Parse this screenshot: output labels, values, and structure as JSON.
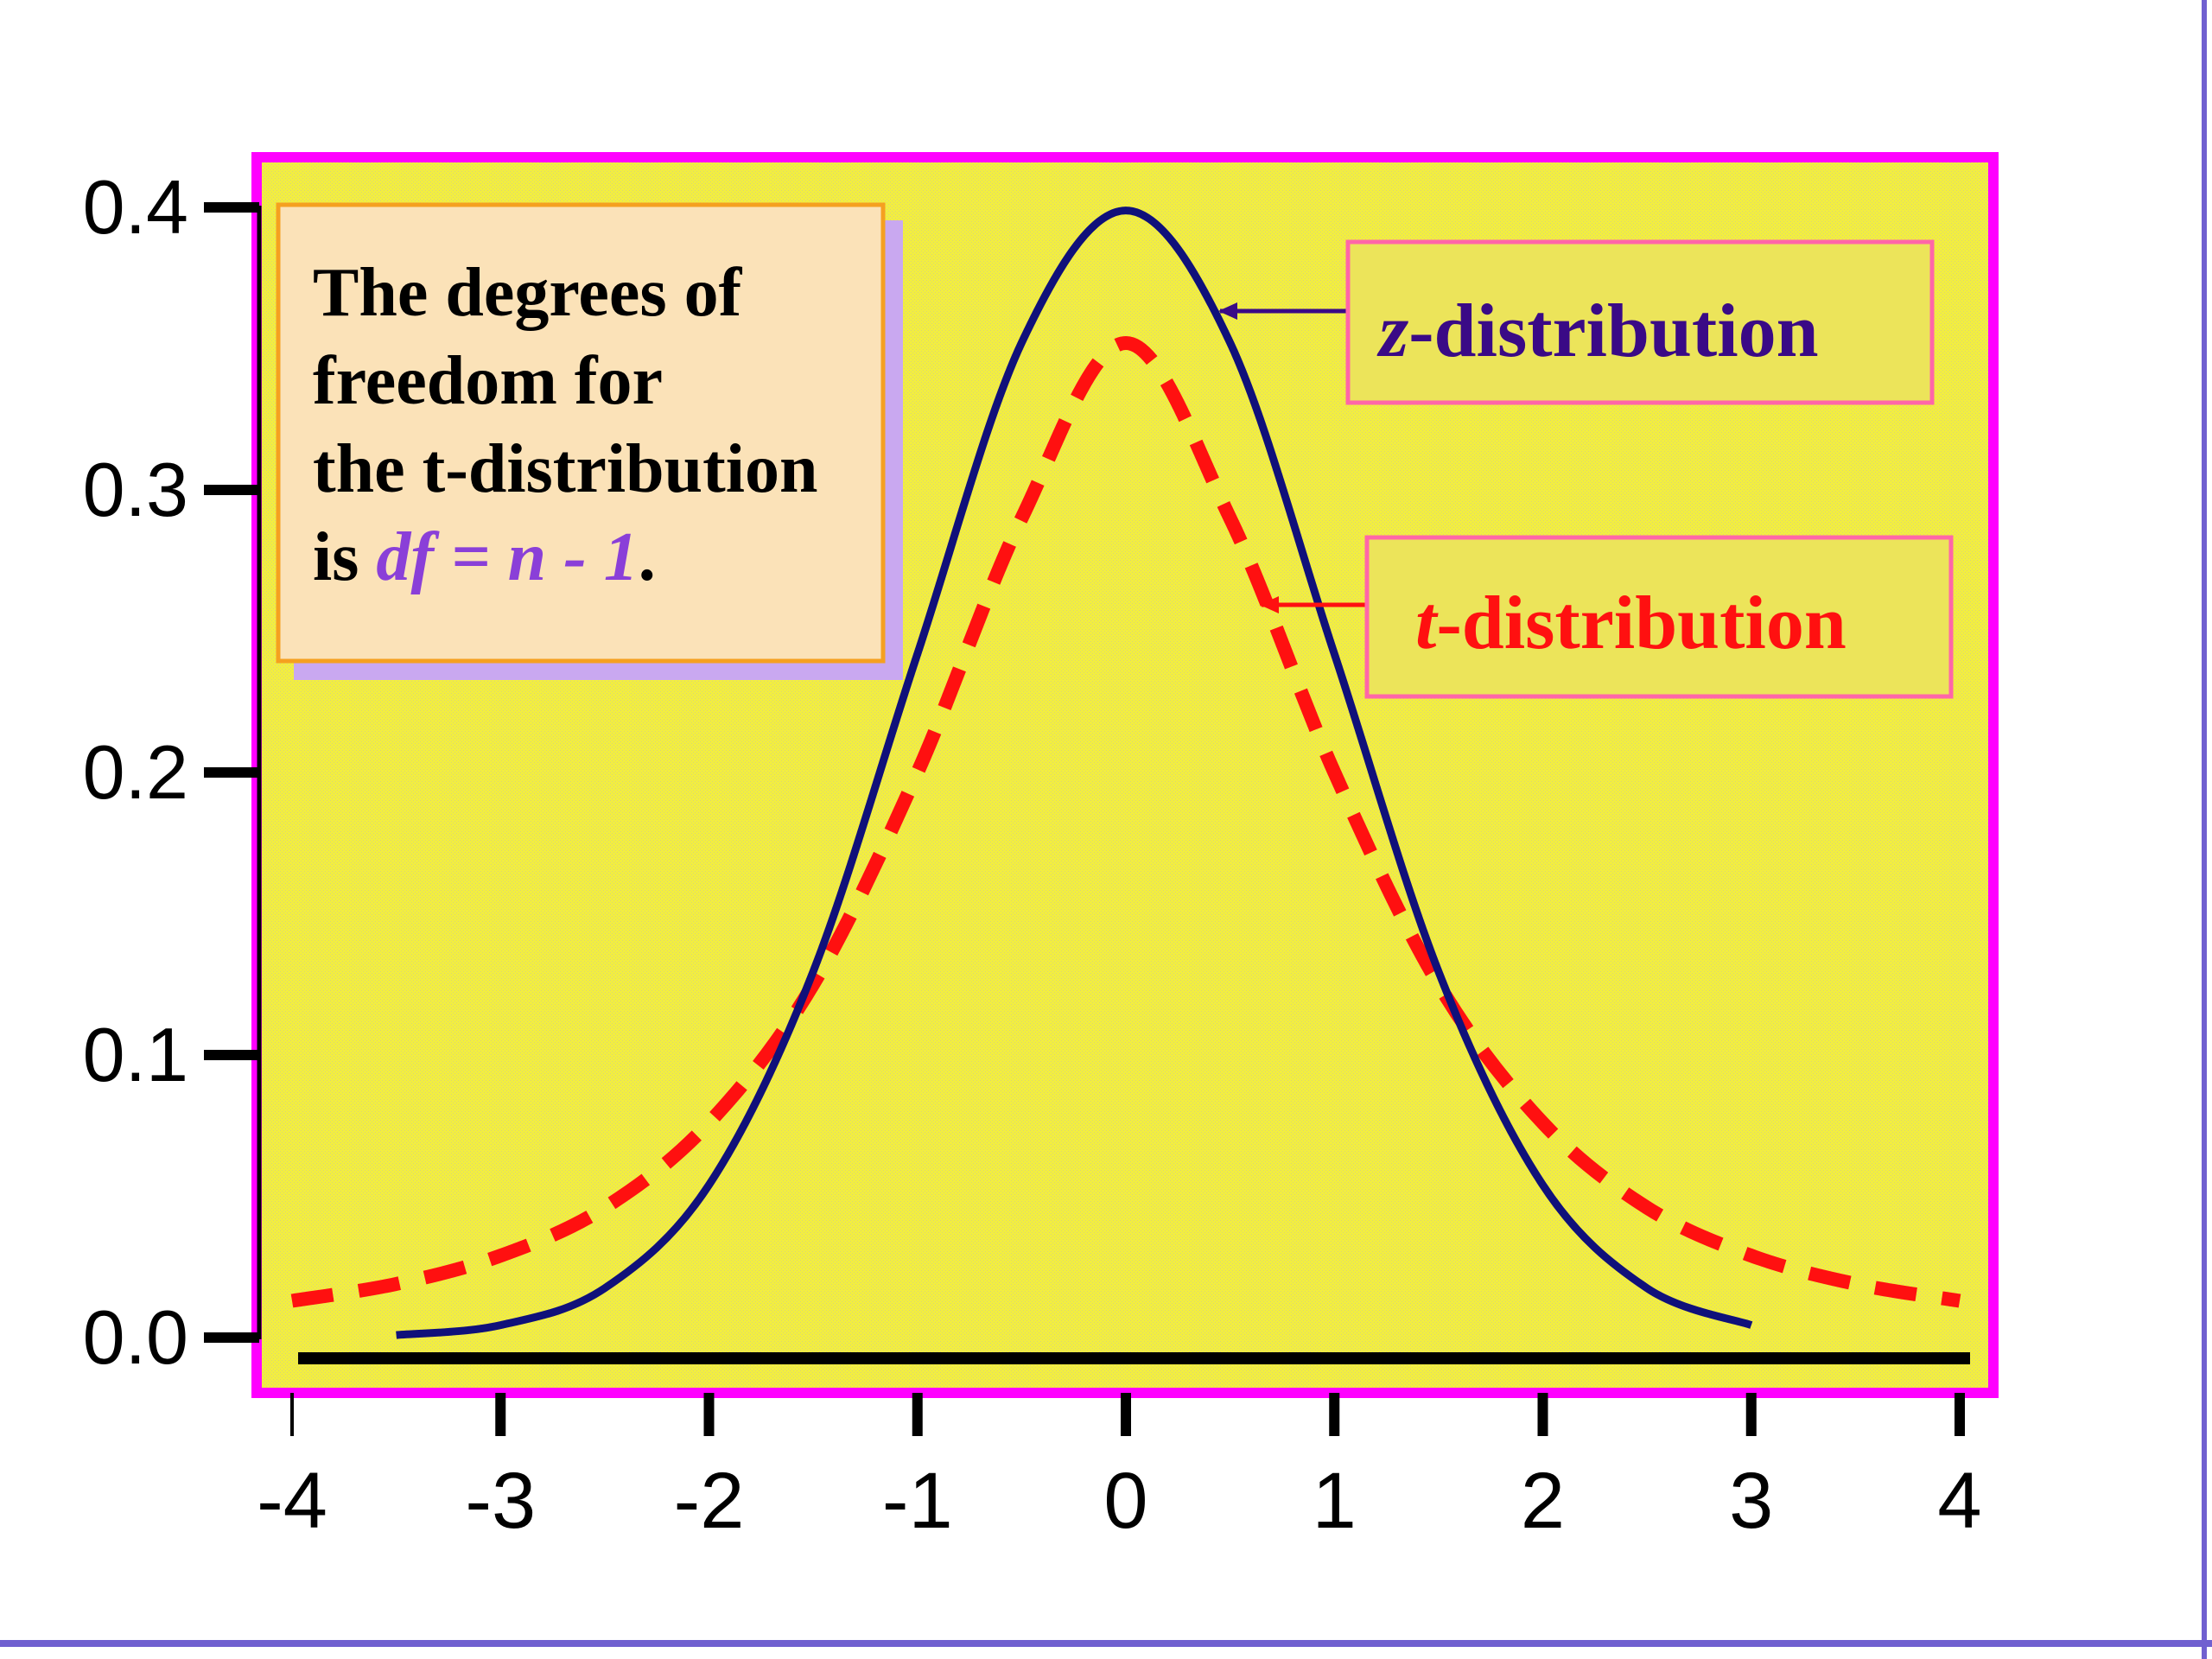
{
  "colors": {
    "plot_bg": "#f2ee40",
    "plot_border": "#ff00ff",
    "z_curve": "#10107a",
    "t_curve": "#ff1010",
    "note_bg": "#fbe2b8",
    "note_border": "#f5a020",
    "note_shadow": "#c9a8f0",
    "highlight": "#8a3fd8",
    "label_bg": "#ece45a",
    "label_border": "#ff66a8",
    "z_label_text": "#3a0a86",
    "slide_edge": "#7060d0"
  },
  "note": {
    "line1": "The degrees of",
    "line2": "freedom for",
    "line3": "the t-distribution",
    "line4_prefix": "is ",
    "line4_formula": "df = n - 1",
    "line4_suffix": "."
  },
  "z_label": {
    "var": "z",
    "text": "-distribution"
  },
  "t_label": {
    "var": "t",
    "text": "-distribution"
  },
  "chart_data": {
    "type": "line",
    "x_ticks": [
      "-4",
      "-3",
      "-2",
      "-1",
      "0",
      "1",
      "2",
      "3",
      "4"
    ],
    "y_ticks": [
      "0.0",
      "0.1",
      "0.2",
      "0.3",
      "0.4"
    ],
    "xlim": [
      -4,
      4
    ],
    "ylim": [
      0,
      0.4
    ],
    "grid": false,
    "series": [
      {
        "name": "z-distribution",
        "style": "solid",
        "x": [
          -3.5,
          -3.0,
          -2.5,
          -2.0,
          -1.5,
          -1.0,
          -0.5,
          0.0,
          0.5,
          1.0,
          1.5,
          2.0,
          2.5,
          3.0
        ],
        "y": [
          0.0009,
          0.0044,
          0.0175,
          0.054,
          0.1295,
          0.242,
          0.3521,
          0.3989,
          0.3521,
          0.242,
          0.1295,
          0.054,
          0.0175,
          0.0044
        ]
      },
      {
        "name": "t-distribution",
        "style": "dashed",
        "x": [
          -4.0,
          -3.5,
          -3.0,
          -2.5,
          -2.0,
          -1.5,
          -1.0,
          -0.5,
          0.0,
          0.5,
          1.0,
          1.5,
          2.0,
          2.5,
          3.0,
          3.5,
          4.0
        ],
        "y": [
          0.013,
          0.019,
          0.029,
          0.046,
          0.076,
          0.125,
          0.2,
          0.29,
          0.352,
          0.29,
          0.2,
          0.125,
          0.076,
          0.046,
          0.029,
          0.019,
          0.013
        ]
      }
    ]
  }
}
